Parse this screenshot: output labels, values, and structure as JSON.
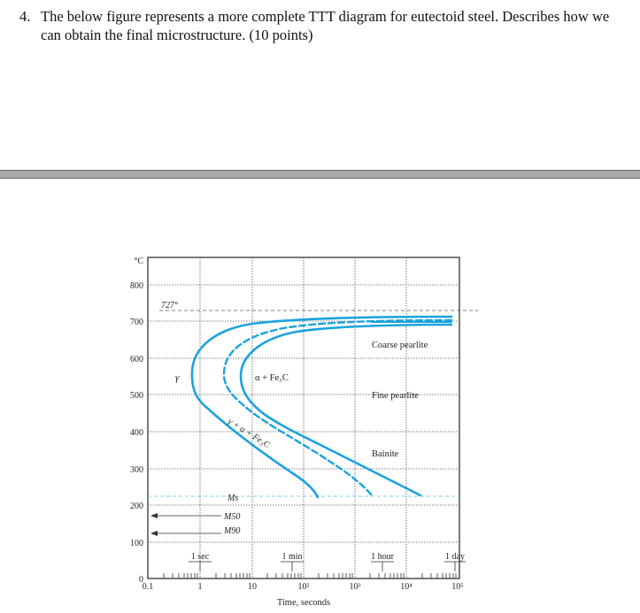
{
  "question": {
    "number": "4.",
    "text": "The below figure represents a more complete TTT diagram for eutectoid steel. Describes how we can obtain the final microstructure. (10 points)"
  },
  "figure": {
    "y_unit": "°C",
    "y_ticks": [
      "800",
      "700",
      "600",
      "500",
      "400",
      "300",
      "200",
      "100",
      "0"
    ],
    "x_ticks": [
      "0.1",
      "1",
      "10",
      "10²",
      "10³",
      "10⁴",
      "10⁵"
    ],
    "x_axis_label": "Time, seconds",
    "time_markers": [
      "1 sec",
      "1 min",
      "1 hour",
      "1 day"
    ],
    "eutectoid_label": "727°",
    "region_labels": {
      "gamma": "γ",
      "alpha_fe3c": "α + Fe₃C",
      "transition": "γ + α + Fe₃C",
      "coarse_pearlite": "Coarse pearlite",
      "fine_pearlite": "Fine pearlite",
      "bainite": "Bainite"
    },
    "martensite_labels": {
      "ms": "Ms",
      "m50": "M50",
      "m90": "M90"
    },
    "colors": {
      "curve": "#1aa3dc",
      "ms_line": "#7fd0ee",
      "grid": "#444444"
    }
  }
}
